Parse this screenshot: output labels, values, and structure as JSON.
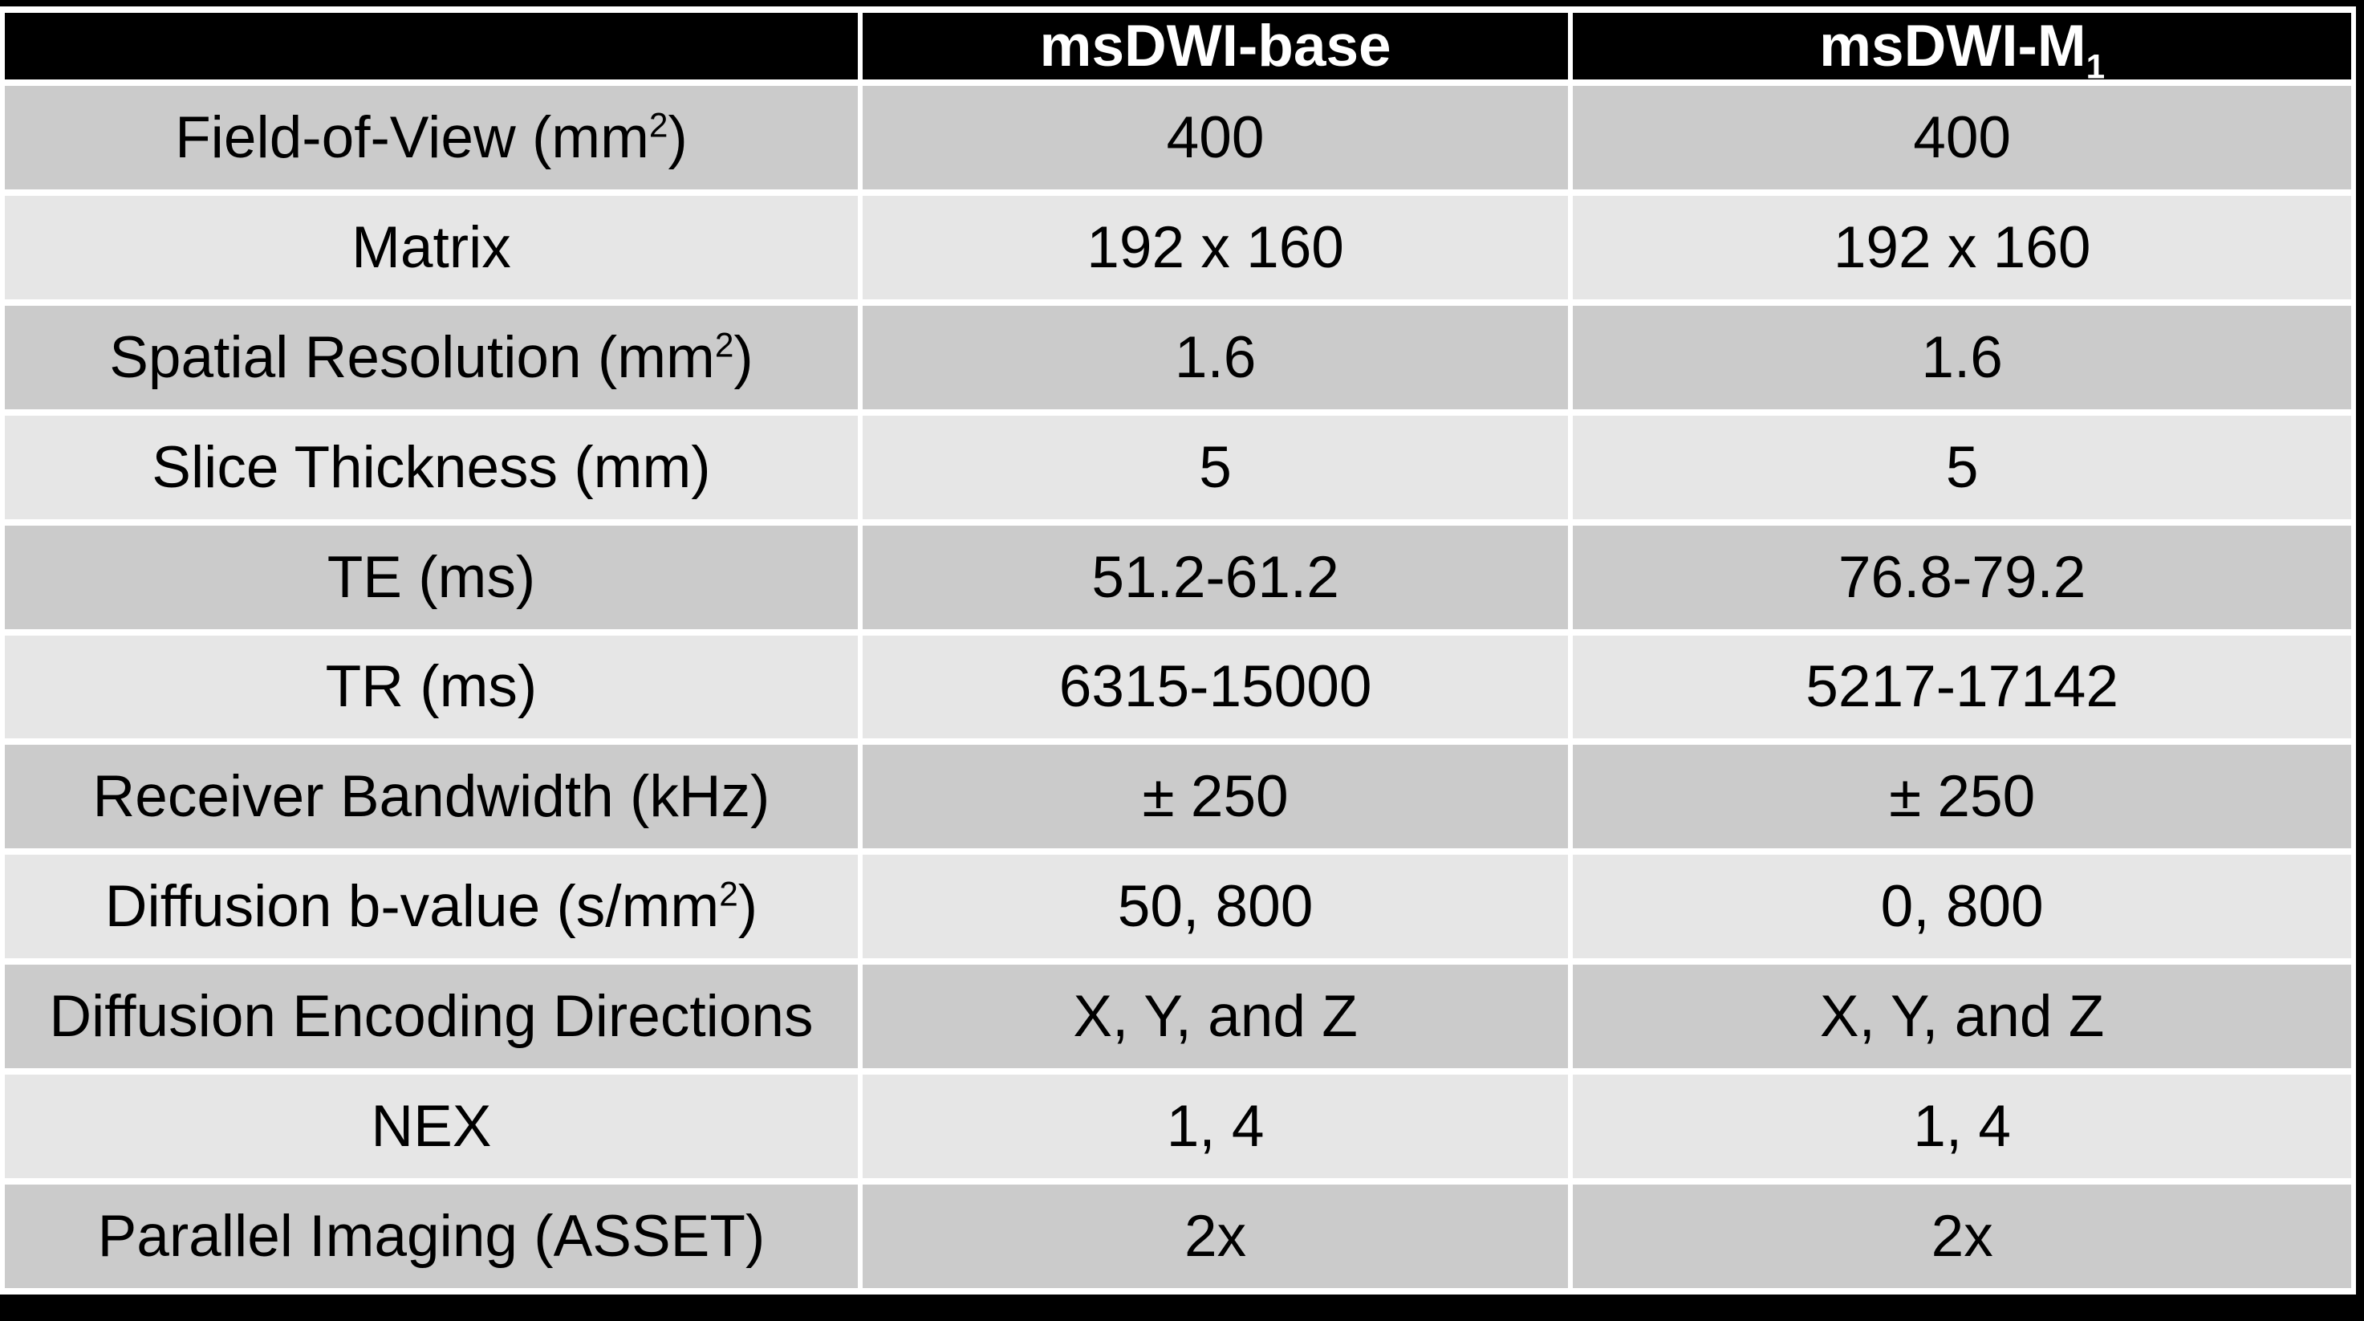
{
  "colors": {
    "frame_black": "#000000",
    "gap_white": "#ffffff",
    "header_bg": "#000000",
    "header_text": "#ffffff",
    "row_dark": "#cbcbcb",
    "row_light": "#e6e6e6",
    "cell_text": "#000000"
  },
  "table": {
    "columns": [
      "",
      "msDWI-base",
      "msDWI-M_1"
    ],
    "rows": [
      {
        "label": "Field-of-View (mm^2)",
        "values": [
          "400",
          "400"
        ]
      },
      {
        "label": "Matrix",
        "values": [
          "192 x 160",
          "192 x 160"
        ]
      },
      {
        "label": "Spatial Resolution (mm^2)",
        "values": [
          "1.6",
          "1.6"
        ]
      },
      {
        "label": "Slice Thickness (mm)",
        "values": [
          "5",
          "5"
        ]
      },
      {
        "label": "TE (ms)",
        "values": [
          "51.2-61.2",
          "76.8-79.2"
        ]
      },
      {
        "label": "TR (ms)",
        "values": [
          "6315-15000",
          "5217-17142"
        ]
      },
      {
        "label": "Receiver Bandwidth (kHz)",
        "values": [
          "± 250",
          "± 250"
        ]
      },
      {
        "label": "Diffusion b-value (s/mm^2)",
        "values": [
          "50, 800",
          "0, 800"
        ]
      },
      {
        "label": "Diffusion Encoding Directions",
        "values": [
          "X, Y, and Z",
          "X, Y, and Z"
        ]
      },
      {
        "label": "NEX",
        "values": [
          "1, 4",
          "1, 4"
        ]
      },
      {
        "label": "Parallel Imaging (ASSET)",
        "values": [
          "2x",
          "2x"
        ]
      }
    ]
  }
}
